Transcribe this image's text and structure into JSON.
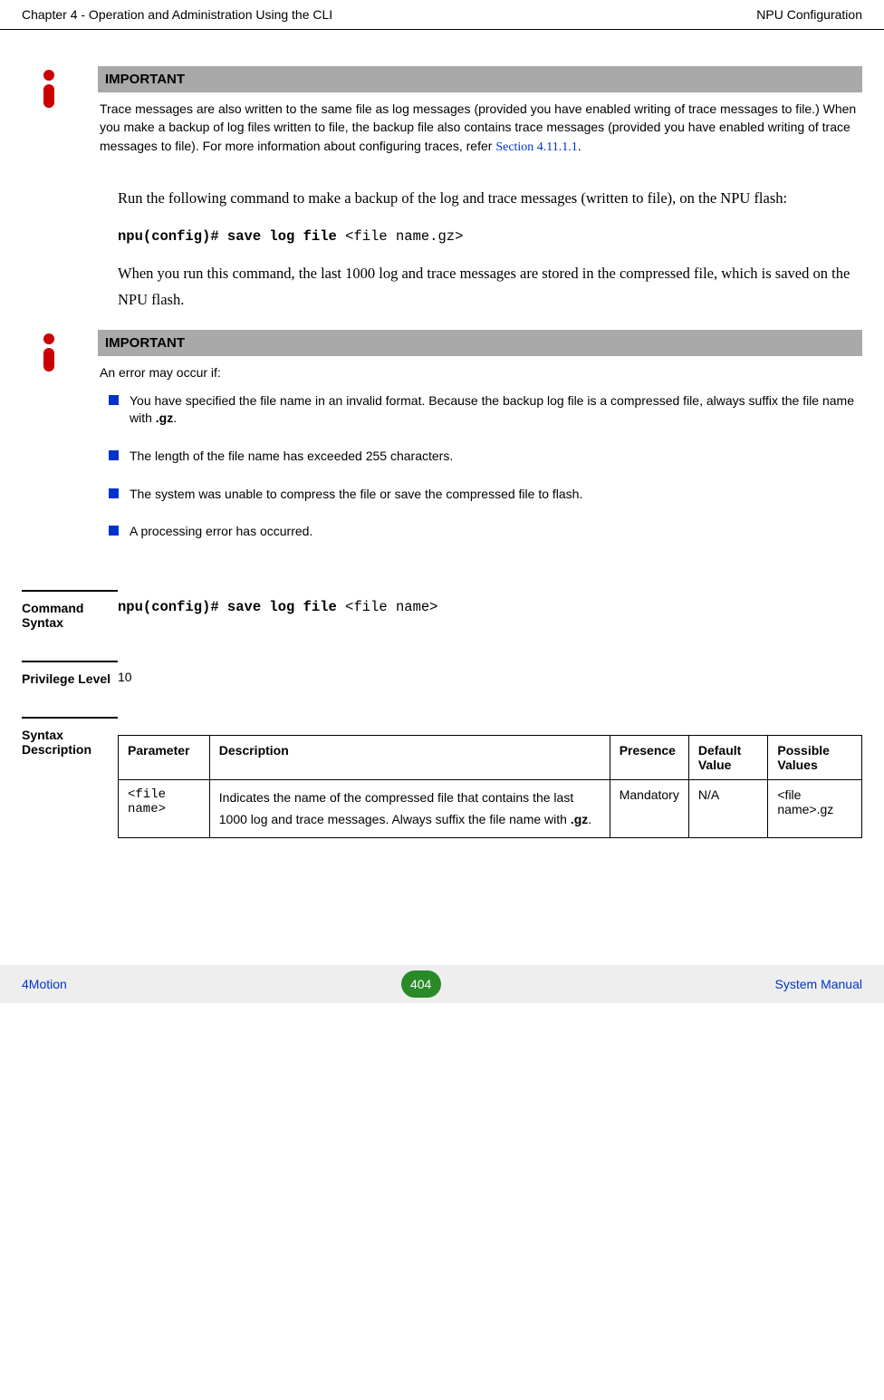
{
  "header": {
    "left": "Chapter 4 - Operation and Administration Using the CLI",
    "right": "NPU Configuration"
  },
  "callout1": {
    "title": "IMPORTANT",
    "text_pre": "Trace messages are also written to the same file as log messages (provided you have enabled writing of trace messages to file.) When you make a backup of log files written to file, the backup file also contains trace messages (provided you have enabled writing of trace messages to file). For more information about configuring traces, refer ",
    "link": "Section 4.11.1.1",
    "text_post": "."
  },
  "para1": "Run the following command to make a backup of the log and trace messages (written to file), on the NPU flash:",
  "code1_bold": "npu(config)# save log file ",
  "code1_rest": "<file name.gz>",
  "para2": "When you run this command, the last 1000 log and trace messages are stored in the compressed file, which is saved on the NPU flash.",
  "callout2": {
    "title": "IMPORTANT",
    "intro": "An error may occur if:",
    "items": [
      {
        "text_pre": "You have specified the file name in an invalid format. Because the backup log file is a compressed file, always suffix the file name with ",
        "bold": ".gz",
        "text_post": "."
      },
      {
        "text_pre": "The length of the file name has exceeded 255 characters.",
        "bold": "",
        "text_post": ""
      },
      {
        "text_pre": "The system was unable to compress the file or save the compressed file to flash.",
        "bold": "",
        "text_post": ""
      },
      {
        "text_pre": "A processing error has occurred.",
        "bold": "",
        "text_post": ""
      }
    ]
  },
  "defs": {
    "command_label": "Command Syntax",
    "command_bold": "npu(config)# save log file ",
    "command_rest": "<file name>",
    "privilege_label": "Privilege Level",
    "privilege_value": "10",
    "syntax_label": "Syntax Description"
  },
  "table": {
    "headers": [
      "Parameter",
      "Description",
      "Presence",
      "Default Value",
      "Possible Values"
    ],
    "row": {
      "parameter": "<file name>",
      "description_pre": "Indicates the name of the compressed file that contains the last 1000 log and trace messages. Always suffix the file name with ",
      "description_bold": ".gz",
      "description_post": ".",
      "presence": "Mandatory",
      "default": "N/A",
      "possible": "<file name>.gz"
    }
  },
  "footer": {
    "left": "4Motion",
    "page": "404",
    "right": "System Manual"
  }
}
